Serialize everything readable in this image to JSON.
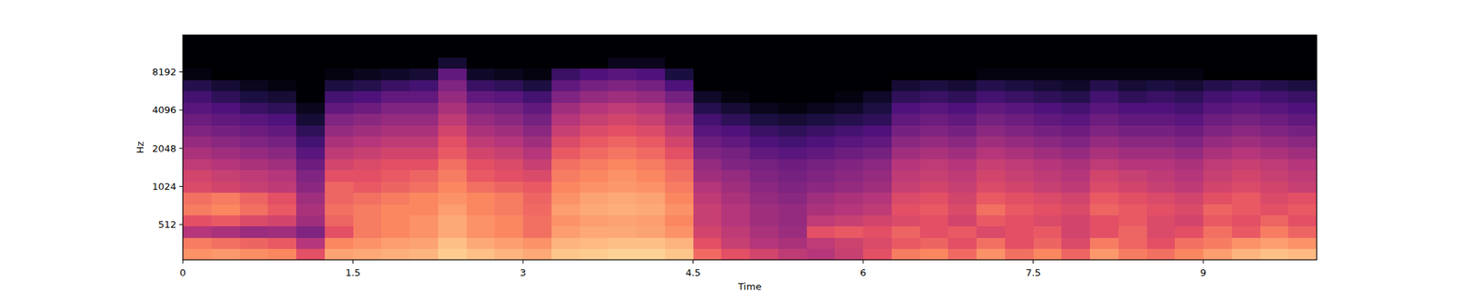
{
  "chart_data": {
    "type": "heatmap",
    "x_label": "Time",
    "y_label": "Hz",
    "xlim": [
      0,
      10
    ],
    "ylim": [
      270,
      16000
    ],
    "log": "y",
    "xticks": [
      0,
      1.5,
      3,
      4.5,
      6,
      7.5,
      9
    ],
    "yticks": [
      512,
      1024,
      2048,
      4096,
      8192
    ],
    "zlim": [
      -80,
      0
    ],
    "x_bins": [
      0,
      0.25,
      0.5,
      0.75,
      1,
      1.25,
      1.5,
      1.75,
      2,
      2.25,
      2.5,
      2.75,
      3,
      3.25,
      3.5,
      3.75,
      4,
      4.25,
      4.5,
      4.75,
      5,
      5.25,
      5.5,
      5.75,
      6,
      6.25,
      6.5,
      6.75,
      7,
      7.25,
      7.5,
      7.75,
      8,
      8.25,
      8.5,
      8.75,
      9,
      9.25,
      9.5,
      9.75,
      10
    ],
    "y_bins": [
      270,
      331,
      406,
      498,
      611,
      750,
      920,
      1129,
      1385,
      1699,
      2084,
      2557,
      3137,
      3849,
      4722,
      5793,
      7107,
      8720,
      10698,
      13125,
      16000
    ],
    "cells": [
      [
        -18,
        -17,
        -19,
        -20,
        -30,
        -15,
        -14,
        -13,
        -12,
        -8,
        -10,
        -12,
        -14,
        -9,
        -8,
        -7,
        -7,
        -9,
        -25,
        -30,
        -34,
        -38,
        -40,
        -36,
        -30,
        -22,
        -20,
        -25,
        -18,
        -24,
        -20,
        -26,
        -17,
        -22,
        -24,
        -20,
        -16,
        -12,
        -10,
        -11
      ],
      [
        -22,
        -24,
        -26,
        -28,
        -40,
        -20,
        -18,
        -16,
        -15,
        -10,
        -14,
        -16,
        -18,
        -12,
        -11,
        -10,
        -10,
        -12,
        -30,
        -36,
        -40,
        -42,
        -38,
        -35,
        -32,
        -28,
        -26,
        -30,
        -24,
        -30,
        -26,
        -32,
        -22,
        -26,
        -30,
        -24,
        -22,
        -18,
        -16,
        -18
      ],
      [
        -40,
        -42,
        -45,
        -44,
        -50,
        -30,
        -22,
        -20,
        -18,
        -14,
        -18,
        -20,
        -24,
        -16,
        -14,
        -14,
        -15,
        -18,
        -34,
        -38,
        -42,
        -45,
        -30,
        -28,
        -30,
        -26,
        -30,
        -28,
        -32,
        -30,
        -28,
        -34,
        -30,
        -26,
        -32,
        -30,
        -24,
        -28,
        -22,
        -26
      ],
      [
        -30,
        -28,
        -32,
        -34,
        -44,
        -26,
        -22,
        -20,
        -18,
        -14,
        -18,
        -20,
        -24,
        -18,
        -16,
        -15,
        -16,
        -20,
        -36,
        -40,
        -44,
        -46,
        -38,
        -36,
        -34,
        -32,
        -30,
        -34,
        -28,
        -30,
        -32,
        -34,
        -30,
        -28,
        -32,
        -34,
        -28,
        -30,
        -26,
        -30
      ],
      [
        -22,
        -20,
        -24,
        -28,
        -42,
        -24,
        -22,
        -20,
        -20,
        -16,
        -20,
        -22,
        -25,
        -16,
        -14,
        -13,
        -14,
        -18,
        -36,
        -40,
        -44,
        -46,
        -42,
        -40,
        -38,
        -30,
        -28,
        -32,
        -24,
        -28,
        -30,
        -32,
        -26,
        -28,
        -30,
        -32,
        -26,
        -28,
        -30,
        -28
      ],
      [
        -24,
        -22,
        -26,
        -30,
        -44,
        -26,
        -24,
        -22,
        -20,
        -18,
        -20,
        -22,
        -26,
        -18,
        -15,
        -14,
        -15,
        -20,
        -38,
        -42,
        -46,
        -48,
        -44,
        -42,
        -40,
        -32,
        -30,
        -34,
        -28,
        -30,
        -32,
        -34,
        -28,
        -30,
        -32,
        -34,
        -30,
        -28,
        -32,
        -30
      ],
      [
        -32,
        -34,
        -36,
        -38,
        -48,
        -26,
        -28,
        -26,
        -24,
        -20,
        -24,
        -26,
        -28,
        -20,
        -18,
        -17,
        -18,
        -22,
        -40,
        -44,
        -48,
        -50,
        -48,
        -46,
        -44,
        -36,
        -34,
        -36,
        -32,
        -34,
        -36,
        -38,
        -32,
        -34,
        -36,
        -38,
        -34,
        -32,
        -34,
        -36
      ],
      [
        -34,
        -36,
        -38,
        -40,
        -50,
        -30,
        -30,
        -28,
        -26,
        -22,
        -28,
        -30,
        -32,
        -22,
        -20,
        -18,
        -20,
        -24,
        -44,
        -46,
        -50,
        -52,
        -50,
        -48,
        -46,
        -38,
        -36,
        -38,
        -34,
        -36,
        -38,
        -40,
        -34,
        -36,
        -38,
        -40,
        -36,
        -34,
        -36,
        -38
      ],
      [
        -38,
        -40,
        -42,
        -44,
        -54,
        -34,
        -32,
        -30,
        -30,
        -24,
        -30,
        -32,
        -36,
        -24,
        -22,
        -20,
        -22,
        -26,
        -46,
        -50,
        -52,
        -54,
        -52,
        -50,
        -48,
        -40,
        -38,
        -40,
        -36,
        -38,
        -40,
        -42,
        -38,
        -40,
        -40,
        -42,
        -38,
        -36,
        -38,
        -40
      ],
      [
        -42,
        -44,
        -46,
        -48,
        -58,
        -38,
        -36,
        -34,
        -34,
        -28,
        -34,
        -36,
        -40,
        -28,
        -25,
        -23,
        -25,
        -30,
        -50,
        -52,
        -56,
        -58,
        -56,
        -54,
        -52,
        -44,
        -42,
        -44,
        -40,
        -42,
        -44,
        -46,
        -42,
        -44,
        -44,
        -46,
        -42,
        -40,
        -42,
        -44
      ],
      [
        -46,
        -48,
        -50,
        -52,
        -62,
        -42,
        -40,
        -38,
        -38,
        -30,
        -38,
        -40,
        -44,
        -32,
        -28,
        -26,
        -28,
        -34,
        -54,
        -56,
        -60,
        -62,
        -60,
        -58,
        -56,
        -48,
        -46,
        -48,
        -44,
        -46,
        -48,
        -50,
        -46,
        -48,
        -48,
        -50,
        -46,
        -44,
        -46,
        -48
      ],
      [
        -50,
        -52,
        -54,
        -56,
        -66,
        -46,
        -44,
        -42,
        -42,
        -34,
        -42,
        -44,
        -48,
        -36,
        -32,
        -30,
        -32,
        -38,
        -58,
        -60,
        -64,
        -66,
        -64,
        -62,
        -60,
        -52,
        -50,
        -52,
        -48,
        -50,
        -52,
        -54,
        -50,
        -52,
        -52,
        -54,
        -50,
        -48,
        -50,
        -52
      ],
      [
        -54,
        -56,
        -58,
        -60,
        -72,
        -50,
        -48,
        -46,
        -46,
        -38,
        -46,
        -48,
        -52,
        -40,
        -36,
        -34,
        -36,
        -42,
        -62,
        -66,
        -70,
        -72,
        -70,
        -68,
        -66,
        -56,
        -54,
        -56,
        -52,
        -54,
        -56,
        -58,
        -54,
        -56,
        -56,
        -58,
        -54,
        -52,
        -54,
        -56
      ],
      [
        -58,
        -60,
        -64,
        -66,
        -76,
        -56,
        -54,
        -50,
        -50,
        -42,
        -50,
        -52,
        -56,
        -44,
        -40,
        -38,
        -40,
        -46,
        -68,
        -72,
        -76,
        -78,
        -76,
        -74,
        -70,
        -60,
        -58,
        -60,
        -56,
        -58,
        -60,
        -62,
        -58,
        -60,
        -60,
        -62,
        -58,
        -56,
        -58,
        -60
      ],
      [
        -62,
        -66,
        -70,
        -72,
        -80,
        -62,
        -60,
        -56,
        -56,
        -46,
        -56,
        -58,
        -62,
        -50,
        -46,
        -44,
        -46,
        -52,
        -74,
        -78,
        -80,
        -80,
        -80,
        -78,
        -74,
        -66,
        -64,
        -66,
        -62,
        -64,
        -66,
        -68,
        -62,
        -66,
        -64,
        -66,
        -62,
        -60,
        -62,
        -64
      ],
      [
        -68,
        -72,
        -76,
        -78,
        -80,
        -70,
        -68,
        -64,
        -62,
        -50,
        -64,
        -66,
        -70,
        -56,
        -52,
        -50,
        -52,
        -60,
        -80,
        -80,
        -80,
        -80,
        -80,
        -80,
        -80,
        -72,
        -70,
        -72,
        -68,
        -70,
        -72,
        -74,
        -68,
        -72,
        -70,
        -72,
        -68,
        -66,
        -68,
        -70
      ],
      [
        -78,
        -80,
        -80,
        -80,
        -80,
        -78,
        -76,
        -74,
        -72,
        -56,
        -74,
        -76,
        -78,
        -64,
        -60,
        -58,
        -60,
        -70,
        -80,
        -80,
        -80,
        -80,
        -80,
        -80,
        -80,
        -80,
        -80,
        -80,
        -78,
        -78,
        -78,
        -78,
        -78,
        -78,
        -78,
        -78,
        -80,
        -80,
        -80,
        -80
      ],
      [
        -80,
        -80,
        -80,
        -80,
        -80,
        -80,
        -80,
        -80,
        -80,
        -72,
        -80,
        -80,
        -80,
        -80,
        -80,
        -76,
        -76,
        -80,
        -80,
        -80,
        -80,
        -80,
        -80,
        -80,
        -80,
        -80,
        -80,
        -80,
        -80,
        -80,
        -80,
        -80,
        -80,
        -80,
        -80,
        -80,
        -80,
        -80,
        -80,
        -80
      ],
      [
        -80,
        -80,
        -80,
        -80,
        -80,
        -80,
        -80,
        -80,
        -80,
        -80,
        -80,
        -80,
        -80,
        -80,
        -80,
        -80,
        -80,
        -80,
        -80,
        -80,
        -80,
        -80,
        -80,
        -80,
        -80,
        -80,
        -80,
        -80,
        -80,
        -80,
        -80,
        -80,
        -80,
        -80,
        -80,
        -80,
        -80,
        -80,
        -80,
        -80
      ],
      [
        -80,
        -80,
        -80,
        -80,
        -80,
        -80,
        -80,
        -80,
        -80,
        -80,
        -80,
        -80,
        -80,
        -80,
        -80,
        -80,
        -80,
        -80,
        -80,
        -80,
        -80,
        -80,
        -80,
        -80,
        -80,
        -80,
        -80,
        -80,
        -80,
        -80,
        -80,
        -80,
        -80,
        -80,
        -80,
        -80,
        -80,
        -80,
        -80,
        -80
      ]
    ]
  }
}
